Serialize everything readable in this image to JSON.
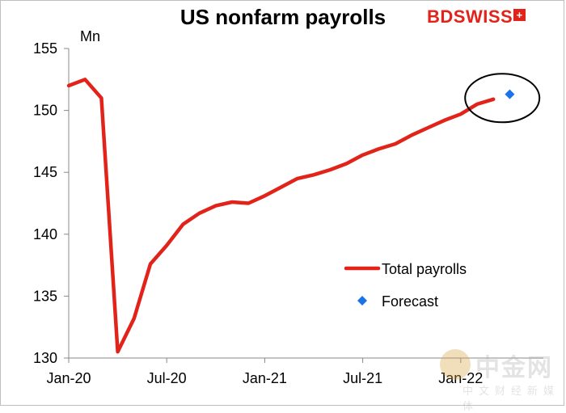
{
  "title": "US nonfarm payrolls",
  "logo": {
    "left": "BD",
    "right": "SWISS",
    "mark": "+"
  },
  "watermark": {
    "main": "中金网",
    "sub": "中文财经新媒体"
  },
  "chart_data": {
    "type": "line",
    "title": "US nonfarm payrolls",
    "ylabel": "Mn",
    "ylim": [
      130,
      155
    ],
    "yticks": [
      130,
      135,
      140,
      145,
      150,
      155
    ],
    "xticks": [
      {
        "label": "Jan-20",
        "index": 0
      },
      {
        "label": "Jul-20",
        "index": 6
      },
      {
        "label": "Jan-21",
        "index": 12
      },
      {
        "label": "Jul-21",
        "index": 18
      },
      {
        "label": "Jan-22",
        "index": 24
      }
    ],
    "legend_position": "right",
    "series": [
      {
        "name": "Total payrolls",
        "color": "#e2231a",
        "style": "line",
        "values": [
          152.0,
          152.5,
          151.0,
          130.5,
          133.2,
          137.6,
          139.1,
          140.8,
          141.7,
          142.3,
          142.6,
          142.5,
          143.1,
          143.8,
          144.5,
          144.8,
          145.2,
          145.7,
          146.4,
          146.9,
          147.3,
          148.0,
          148.6,
          149.2,
          149.7,
          150.5,
          150.9
        ]
      },
      {
        "name": "Forecast",
        "color": "#1a73e8",
        "style": "marker",
        "points": [
          {
            "index": 27,
            "value": 151.3
          }
        ]
      }
    ],
    "annotation": "ellipse around latest values and forecast"
  }
}
